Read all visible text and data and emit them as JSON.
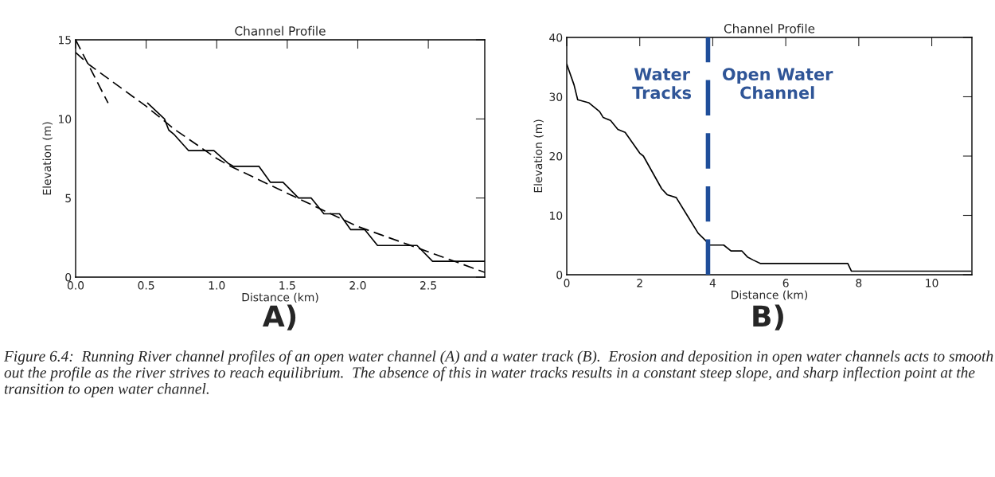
{
  "chart_data": [
    {
      "type": "line",
      "title": "Channel Profile",
      "xlabel": "Distance (km)",
      "ylabel": "Elevation (m)",
      "xlim": [
        0,
        2.9
      ],
      "xticks": [
        {
          "value": 0,
          "label": "0.0"
        },
        0.5,
        {
          "value": 1,
          "label": "1.0"
        },
        1.5,
        {
          "value": 2,
          "label": "2.0"
        },
        2.5
      ],
      "ylim": [
        0,
        15
      ],
      "yticks": [
        0,
        5,
        10,
        15
      ],
      "grid": false,
      "legend": false,
      "series": [
        {
          "color": "#000000",
          "line_style": "solid",
          "x": [
            0.51,
            0.63,
            0.66,
            0.7,
            0.8,
            0.98,
            1.08,
            1.12,
            1.3,
            1.38,
            1.47,
            1.58,
            1.67,
            1.76,
            1.87,
            1.95,
            2.05,
            2.14,
            2.42,
            2.53,
            2.9
          ],
          "values": [
            11,
            10,
            9.3,
            9,
            8,
            8,
            7.2,
            7,
            7,
            6,
            6,
            5,
            5,
            4,
            4,
            3,
            3,
            2,
            2,
            1,
            1
          ]
        },
        {
          "color": "#000000",
          "line_style": "dashed",
          "x": [
            0,
            0.1,
            0.5,
            0.7,
            1.0,
            1.1,
            1.5,
            2.0,
            2.5,
            2.9
          ],
          "values": [
            14.2,
            13.4,
            10.8,
            9.35,
            7.5,
            7.0,
            5.3,
            3.2,
            1.6,
            0.3
          ]
        },
        {
          "color": "#000000",
          "line_style": "dashed",
          "x": [
            0,
            0.23
          ],
          "values": [
            15,
            11
          ]
        }
      ],
      "annotations": [
        "A)"
      ]
    },
    {
      "type": "line",
      "title": "Channel Profile",
      "xlabel": "Distance (km)",
      "ylabel": "Elevation (m)",
      "xlim": [
        0,
        11.1
      ],
      "xticks": [
        0,
        2,
        4,
        6,
        8,
        10
      ],
      "ylim": [
        0,
        40
      ],
      "yticks": [
        0,
        10,
        20,
        30,
        40
      ],
      "grid": false,
      "legend": false,
      "series": [
        {
          "color": "#000000",
          "line_style": "solid",
          "x": [
            0,
            0.2,
            0.3,
            0.6,
            0.9,
            1.0,
            1.2,
            1.4,
            1.6,
            2.0,
            2.1,
            2.6,
            2.75,
            3.0,
            3.3,
            3.6,
            3.8,
            3.9,
            4.3,
            4.5,
            4.8,
            4.95,
            5.1,
            5.3,
            7.7,
            7.8,
            11.07
          ],
          "values": [
            35.5,
            32,
            29.5,
            29,
            27.5,
            26.5,
            26,
            24.5,
            24,
            20.5,
            20,
            14.5,
            13.5,
            13,
            10,
            7,
            5.8,
            5,
            5,
            4,
            4,
            3,
            2.5,
            1.9,
            1.9,
            0.6,
            0.6
          ]
        }
      ],
      "ref_lines": [
        {
          "axis": "x",
          "value": 3.87,
          "color": "#1f4e9a",
          "line_style": "dashed"
        }
      ],
      "annotations": [
        "Water\nTracks",
        "Open Water\nChannel",
        "B)",
        "Figure 6.4:  Running River channel profiles of an open water channel (A) and a water track (B).  Erosion and deposition in open water channels acts to smooth out the profile as the river strives to reach equilibrium.  The absence of this in water tracks results in a constant steep slope, and sharp inflection point at the transition to open water channel."
      ]
    }
  ]
}
